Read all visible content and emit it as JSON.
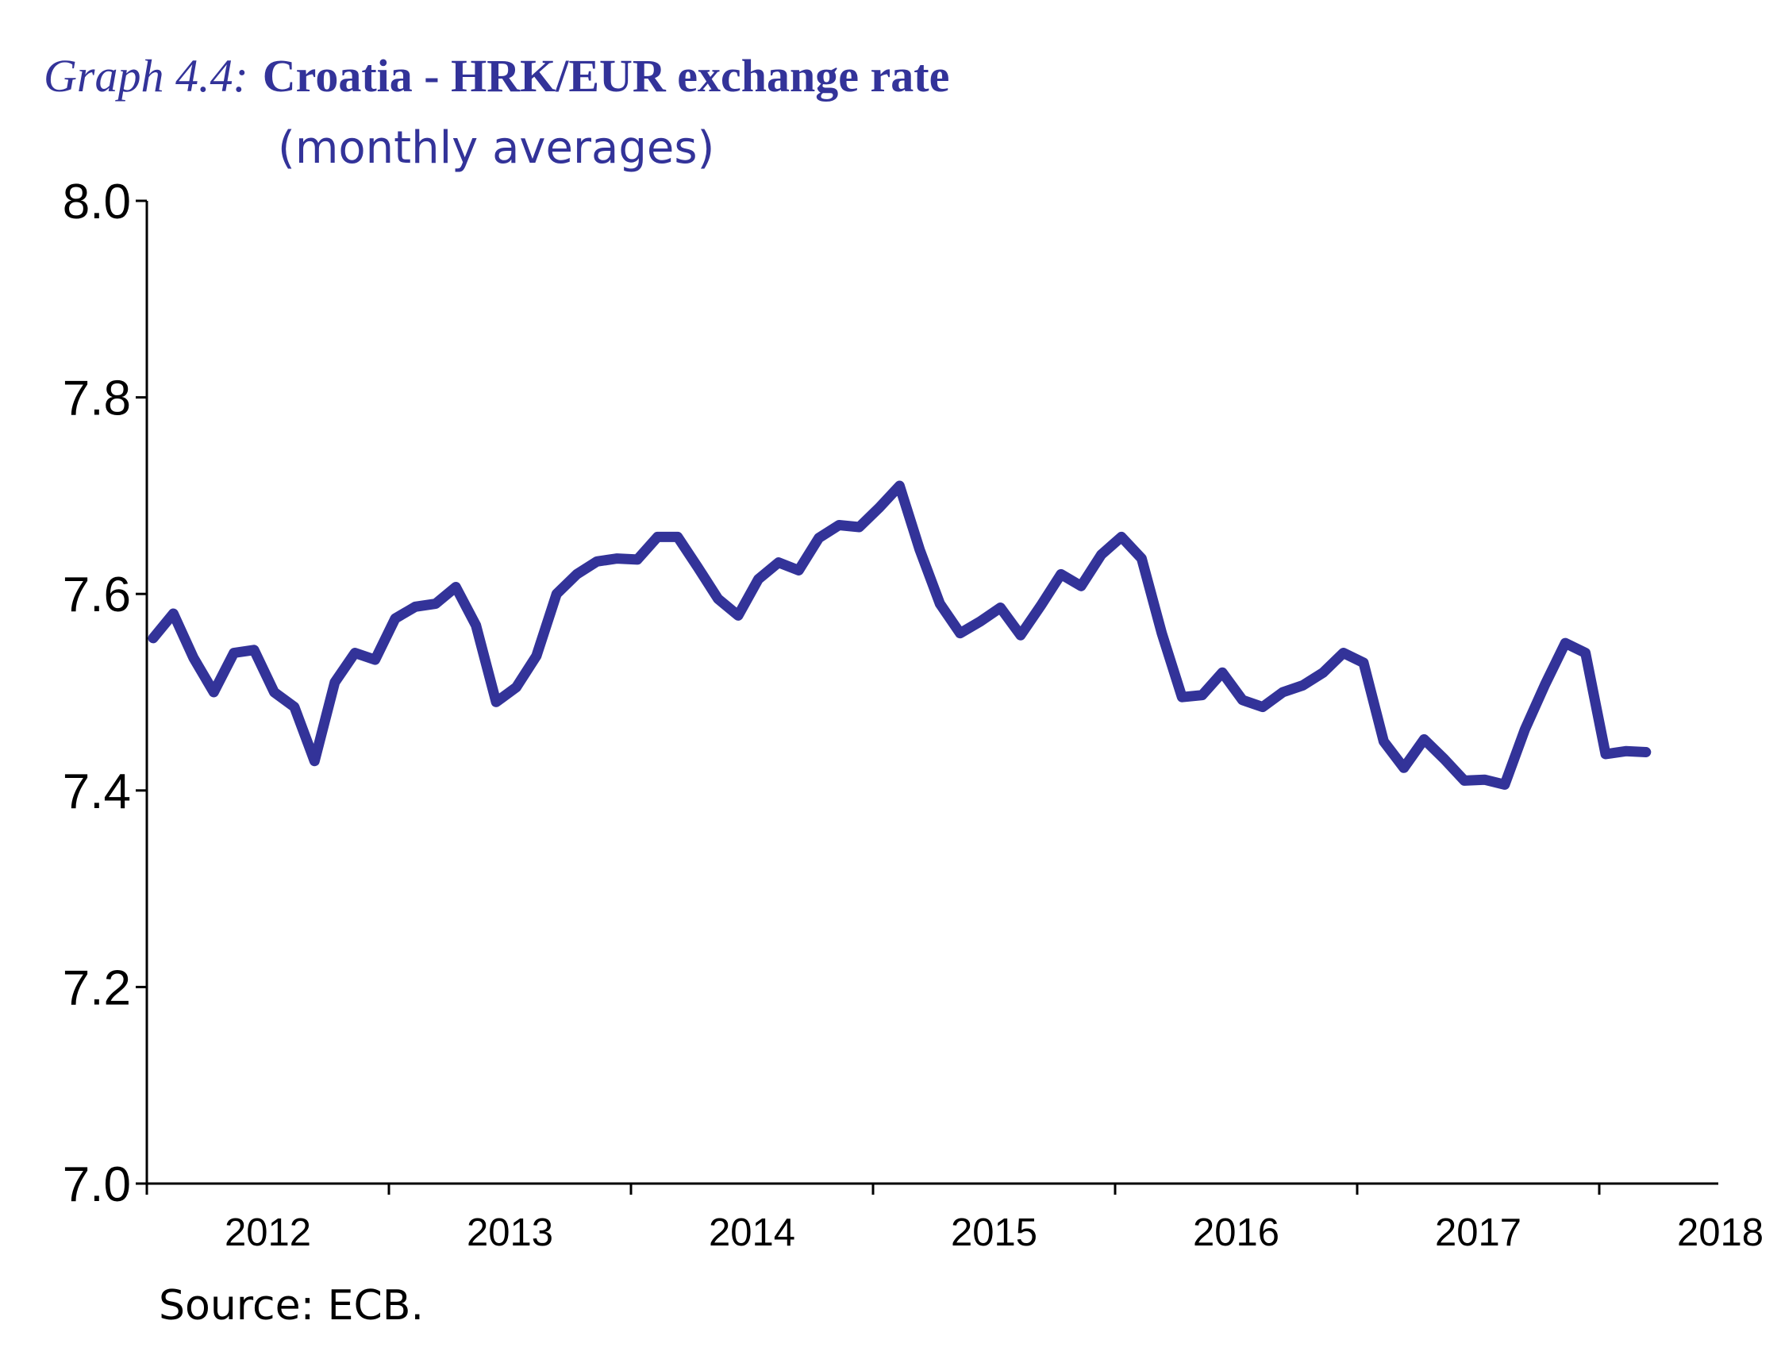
{
  "chart_data": {
    "type": "line",
    "title_prefix": "Graph 4.4:",
    "title": "Croatia - HRK/EUR exchange rate",
    "subtitle": "(monthly averages)",
    "xlabel": "",
    "ylabel": "",
    "ylim": [
      7.0,
      8.0
    ],
    "yticks": [
      "7.0",
      "7.2",
      "7.4",
      "7.6",
      "7.8",
      "8.0"
    ],
    "xticks": [
      "2012",
      "2013",
      "2014",
      "2015",
      "2016",
      "2017",
      "2018"
    ],
    "x_start": "2012-01",
    "x_frequency": "monthly",
    "grid": false,
    "series": [
      {
        "name": "HRK/EUR",
        "color": "#333399",
        "values": [
          7.555,
          7.58,
          7.535,
          7.5,
          7.54,
          7.543,
          7.5,
          7.485,
          7.43,
          7.51,
          7.54,
          7.533,
          7.575,
          7.587,
          7.59,
          7.607,
          7.568,
          7.49,
          7.505,
          7.537,
          7.6,
          7.62,
          7.633,
          7.636,
          7.635,
          7.658,
          7.658,
          7.627,
          7.595,
          7.578,
          7.615,
          7.632,
          7.624,
          7.657,
          7.67,
          7.668,
          7.688,
          7.71,
          7.645,
          7.59,
          7.56,
          7.572,
          7.586,
          7.558,
          7.588,
          7.62,
          7.608,
          7.64,
          7.658,
          7.636,
          7.56,
          7.495,
          7.497,
          7.52,
          7.492,
          7.485,
          7.5,
          7.507,
          7.52,
          7.54,
          7.53,
          7.45,
          7.423,
          7.452,
          7.432,
          7.41,
          7.411,
          7.406,
          7.462,
          7.508,
          7.55,
          7.54,
          7.437,
          7.44,
          7.439
        ]
      }
    ],
    "source": "Source: ECB."
  }
}
